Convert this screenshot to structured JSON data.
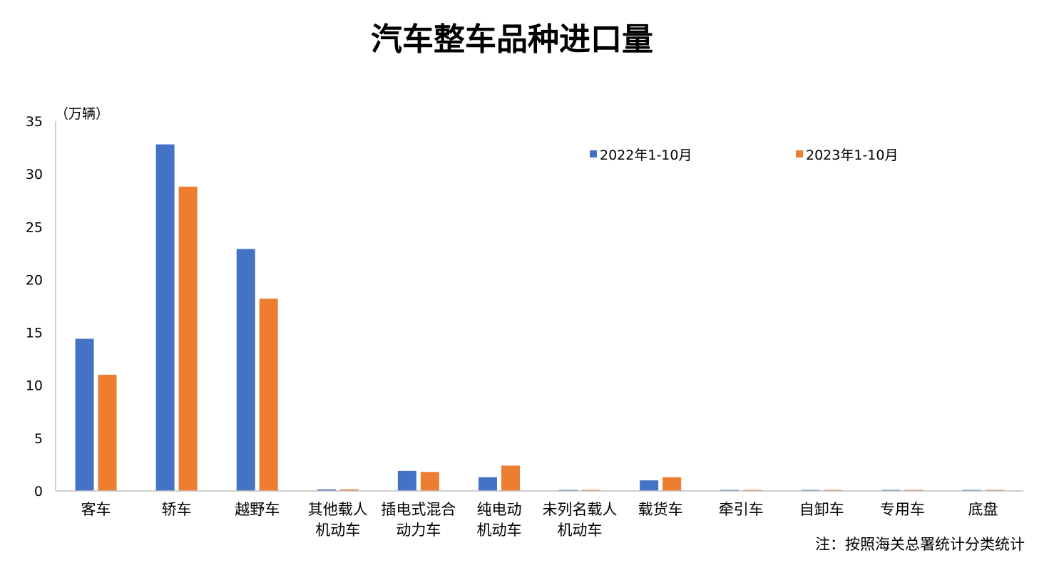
{
  "chart_data": {
    "type": "bar",
    "title": "汽车整车品种进口量",
    "ylabel": "（万辆）",
    "ylim": [
      0,
      35
    ],
    "yticks": [
      "0",
      "5",
      "10",
      "15",
      "20",
      "25",
      "30",
      "35"
    ],
    "grid": false,
    "legend_position": "top-right",
    "categories": [
      [
        "客车"
      ],
      [
        "轿车"
      ],
      [
        "越野车"
      ],
      [
        "其他载人",
        "机动车"
      ],
      [
        "插电式混合",
        "动力车"
      ],
      [
        "纯电动",
        "机动车"
      ],
      [
        "未列名载人",
        "机动车"
      ],
      [
        "载货车"
      ],
      [
        "牵引车"
      ],
      [
        "自卸车"
      ],
      [
        "专用车"
      ],
      [
        "底盘"
      ]
    ],
    "series": [
      {
        "name": "2022年1-10月",
        "color": "#4472C4",
        "values": [
          14.4,
          32.8,
          22.9,
          0.15,
          1.9,
          1.3,
          0.1,
          1.0,
          0.1,
          0.1,
          0.1,
          0.1
        ]
      },
      {
        "name": "2023年1-10月",
        "color": "#ED7D31",
        "values": [
          11.0,
          28.8,
          18.2,
          0.15,
          1.8,
          2.4,
          0.1,
          1.3,
          0.1,
          0.1,
          0.1,
          0.1
        ]
      }
    ],
    "note": "注：按照海关总署统计分类统计"
  }
}
